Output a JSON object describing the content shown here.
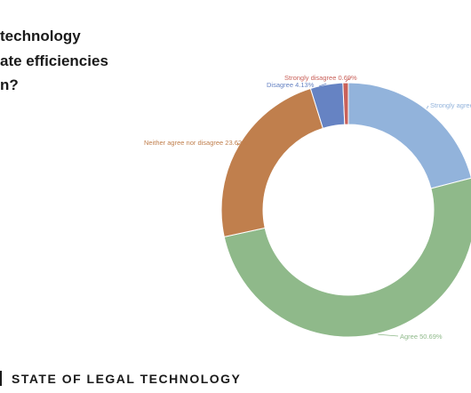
{
  "question": {
    "line1": "technology",
    "line2": "ate efficiencies",
    "line3": "n?"
  },
  "footer": {
    "title": "STATE OF LEGAL TECHNOLOGY"
  },
  "chart_data": {
    "type": "pie",
    "donut": true,
    "categories": [
      "Strongly agree",
      "Agree",
      "Neither agree nor disagree",
      "Disagree",
      "Strongly disagree"
    ],
    "values": [
      21.0,
      50.69,
      23.62,
      4.13,
      0.69
    ],
    "labels": [
      "Strongly agree",
      "Agree 50.69%",
      "Neither agree nor disagree 23.62%",
      "Disagree 4.13%",
      "Strongly disagree 0.69%"
    ],
    "colors": [
      "#92b3db",
      "#8fb98a",
      "#c07f4d",
      "#6683c3",
      "#c9615a"
    ]
  }
}
